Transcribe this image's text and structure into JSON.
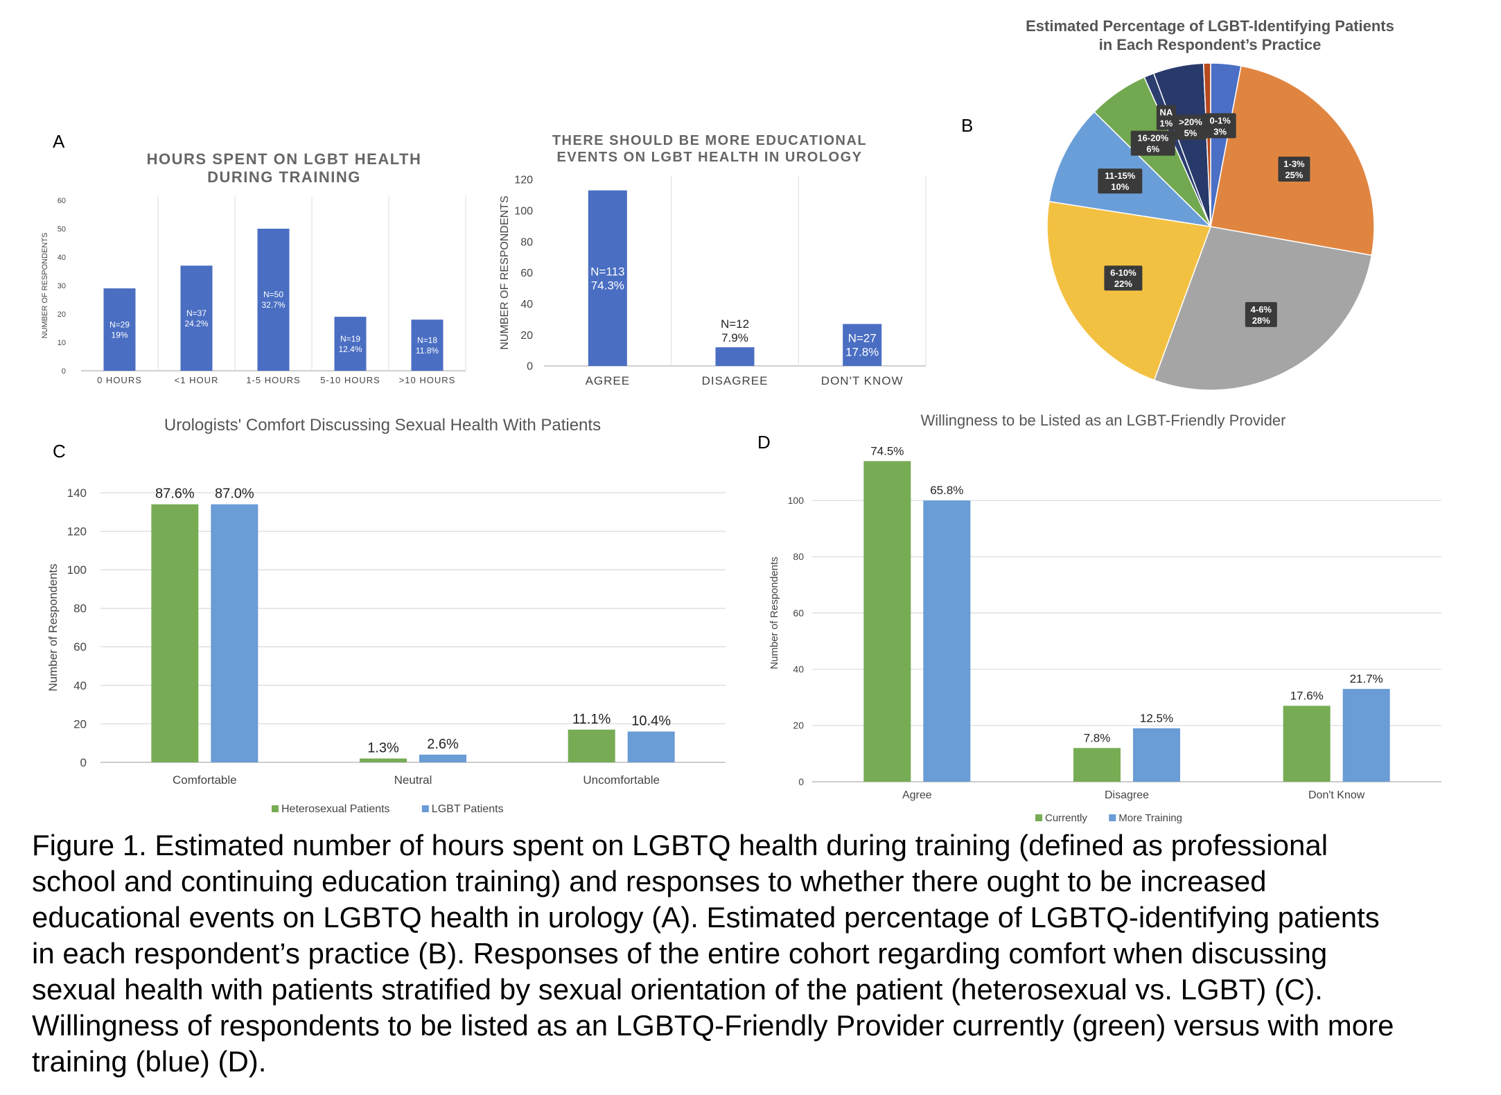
{
  "panel_letters": [
    "A",
    "B",
    "C",
    "D"
  ],
  "chart_data": [
    {
      "id": "A1",
      "type": "bar",
      "title": [
        "HOURS SPENT ON LGBT HEALTH",
        "DURING TRAINING"
      ],
      "xlabel": "",
      "ylabel": "NUMBER OF RESPONDENTS",
      "ylim": [
        0,
        60
      ],
      "yticks": [
        0,
        10,
        20,
        30,
        40,
        50,
        60
      ],
      "categories": [
        "0 HOURS",
        "<1 HOUR",
        "1-5 HOURS",
        "5-10 HOURS",
        ">10 HOURS"
      ],
      "values": [
        29,
        37,
        50,
        19,
        18
      ],
      "labels": [
        [
          "N=29",
          "19%"
        ],
        [
          "N=37",
          "24.2%"
        ],
        [
          "N=50",
          "32.7%"
        ],
        [
          "N=19",
          "12.4%"
        ],
        [
          "N=18",
          "11.8%"
        ]
      ],
      "color": "#4a6ec2"
    },
    {
      "id": "A2",
      "type": "bar",
      "title": [
        "THERE SHOULD BE MORE EDUCATIONAL",
        "EVENTS ON LGBT HEALTH IN UROLOGY"
      ],
      "xlabel": "",
      "ylabel": "NUMBER OF RESPONDENTS",
      "ylim": [
        0,
        120
      ],
      "yticks": [
        0,
        20,
        40,
        60,
        80,
        100,
        120
      ],
      "categories": [
        "AGREE",
        "DISAGREE",
        "DON'T KNOW"
      ],
      "values": [
        113,
        12,
        27
      ],
      "labels": [
        [
          "N=113",
          "74.3%"
        ],
        [
          "N=12",
          "7.9%"
        ],
        [
          "N=27",
          "17.8%"
        ]
      ],
      "color": "#4a6ec2"
    },
    {
      "id": "B",
      "type": "pie",
      "title": [
        "Estimated Percentage of LGBT-Identifying Patients",
        "in Each Respondent’s Practice"
      ],
      "slices": [
        {
          "label": "0-1%",
          "value": 3,
          "pct": "3%",
          "color": "#4a6fc4"
        },
        {
          "label": "1-3%",
          "value": 25,
          "pct": "25%",
          "color": "#e08540"
        },
        {
          "label": "4-6%",
          "value": 28,
          "pct": "28%",
          "color": "#a5a5a5"
        },
        {
          "label": "6-10%",
          "value": 22,
          "pct": "22%",
          "color": "#f3c142"
        },
        {
          "label": "11-15%",
          "value": 10,
          "pct": "10%",
          "color": "#6a9ed8"
        },
        {
          "label": "16-20%",
          "value": 6,
          "pct": "6%",
          "color": "#72a84f"
        },
        {
          "label": "NA",
          "value": 1,
          "pct": "1%",
          "color": "#2c3e70"
        },
        {
          "label": ">20%",
          "value": 5,
          "pct": "5%",
          "color": "#283a6a"
        },
        {
          "label": "",
          "value": 0.7,
          "pct": "",
          "color": "#b54a1e"
        }
      ]
    },
    {
      "id": "C",
      "type": "bar",
      "title": "Urologists' Comfort Discussing Sexual Health With Patients",
      "xlabel": "",
      "ylabel": "Number of Respondents",
      "ylim": [
        0,
        140
      ],
      "yticks": [
        0,
        20,
        40,
        60,
        80,
        100,
        120,
        140
      ],
      "categories": [
        "Comfortable",
        "Neutral",
        "Uncomfortable"
      ],
      "series": [
        {
          "name": "Heterosexual Patients",
          "color": "#77ac55",
          "values": [
            134,
            2,
            17
          ],
          "labels": [
            "87.6%",
            "1.3%",
            "11.1%"
          ]
        },
        {
          "name": "LGBT Patients",
          "color": "#6a9cd5",
          "values": [
            134,
            4,
            16
          ],
          "labels": [
            "87.0%",
            "2.6%",
            "10.4%"
          ]
        }
      ],
      "legend": "bottom"
    },
    {
      "id": "D",
      "type": "bar",
      "title": "Willingness to be Listed as an LGBT-Friendly Provider",
      "xlabel": "",
      "ylabel": "Number of Respondents",
      "ylim": [
        0,
        120
      ],
      "yticks": [
        0,
        20,
        40,
        60,
        80,
        100
      ],
      "categories": [
        "Agree",
        "Disagree",
        "Don't Know"
      ],
      "series": [
        {
          "name": "Currently",
          "color": "#77ac55",
          "values": [
            114,
            12,
            27
          ],
          "labels": [
            "74.5%",
            "7.8%",
            "17.6%"
          ]
        },
        {
          "name": "More Training",
          "color": "#6a9cd5",
          "values": [
            100,
            19,
            33
          ],
          "labels": [
            "65.8%",
            "12.5%",
            "21.7%"
          ]
        }
      ],
      "legend": "bottom"
    }
  ],
  "caption": [
    "Figure 1. Estimated number of hours spent on LGBTQ health during training (defined as professional",
    "school and continuing education training) and responses to whether there ought to be increased",
    "educational events on LGBTQ health in urology (A). Estimated percentage of LGBTQ-identifying patients",
    "in each respondent’s practice (B). Responses of the entire cohort regarding comfort when discussing",
    "sexual health with patients stratified by sexual orientation of the patient (heterosexual vs. LGBT) (C).",
    "Willingness of respondents to be listed as an LGBTQ-Friendly Provider currently (green) versus with more",
    "training (blue) (D)."
  ]
}
